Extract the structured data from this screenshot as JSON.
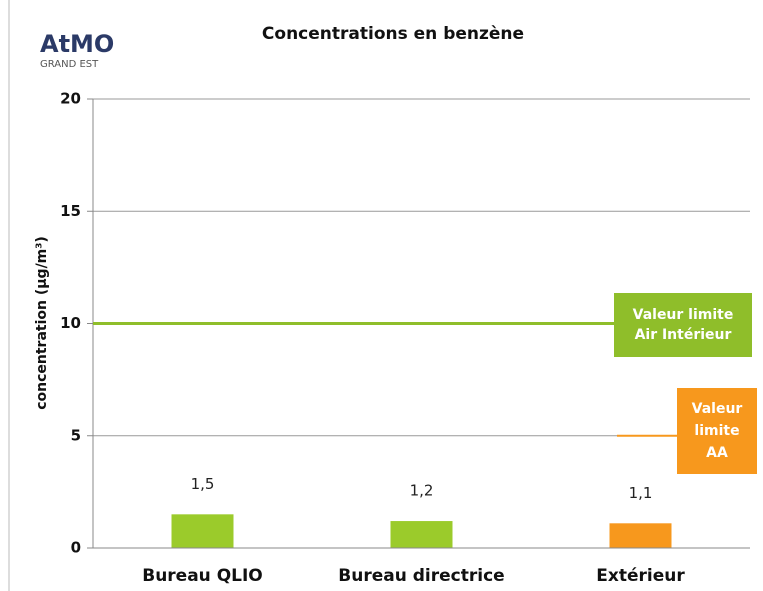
{
  "chart_data": {
    "type": "bar",
    "title": "Concentrations en benzène",
    "logo": {
      "name": "AtMO",
      "subtitle": "GRAND EST"
    },
    "y_label": "concentration (µg/m³)",
    "categories": [
      "Bureau QLIO",
      "Bureau directrice",
      "Extérieur"
    ],
    "values": [
      1.5,
      1.2,
      1.1
    ],
    "value_labels": [
      "1,5",
      "1,2",
      "1,1"
    ],
    "colors": [
      "#9bcb2b",
      "#9bcb2b",
      "#f7981d"
    ],
    "ylim": [
      0,
      20
    ],
    "yticks": [
      0,
      5,
      10,
      15,
      20
    ],
    "grid": true,
    "reference_lines": [
      {
        "value": 10,
        "color": "#8fbe2a",
        "label": [
          "Valeur limite",
          "Air Intérieur"
        ]
      },
      {
        "value": 5,
        "color": "#f7981d",
        "label": [
          "Valeur",
          "limite",
          "AA"
        ]
      }
    ]
  }
}
